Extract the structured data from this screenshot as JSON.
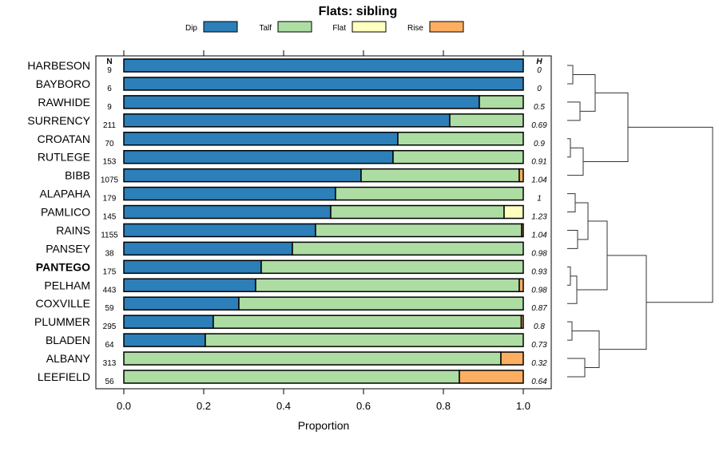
{
  "chart_data": {
    "type": "bar",
    "orientation": "horizontal",
    "stacked": true,
    "title": "Flats: sibling",
    "xlabel": "Proportion",
    "ylabel": "",
    "xlim": [
      0,
      1
    ],
    "x_ticks": [
      "0.0",
      "0.2",
      "0.4",
      "0.6",
      "0.8",
      "1.0"
    ],
    "legend_position": "top",
    "n_header": "N",
    "h_header": "H",
    "highlight": "PANTEGO",
    "categories": [
      "HARBESON",
      "BAYBORO",
      "RAWHIDE",
      "SURRENCY",
      "CROATAN",
      "RUTLEGE",
      "BIBB",
      "ALAPAHA",
      "PAMLICO",
      "RAINS",
      "PANSEY",
      "PANTEGO",
      "PELHAM",
      "COXVILLE",
      "PLUMMER",
      "BLADEN",
      "ALBANY",
      "LEEFIELD"
    ],
    "n": [
      "9",
      "6",
      "9",
      "211",
      "70",
      "153",
      "1075",
      "179",
      "145",
      "1155",
      "38",
      "175",
      "443",
      "59",
      "295",
      "64",
      "313",
      "56"
    ],
    "h": [
      "0",
      "0",
      "0.5",
      "0.69",
      "0.9",
      "0.91",
      "1.04",
      "1",
      "1.23",
      "1.04",
      "0.98",
      "0.93",
      "0.98",
      "0.87",
      "0.8",
      "0.73",
      "0.32",
      "0.64"
    ],
    "series": [
      {
        "name": "Dip",
        "color": "#2c7fb8",
        "values": [
          1,
          1,
          0.89,
          0.816,
          0.686,
          0.674,
          0.594,
          0.53,
          0.518,
          0.48,
          0.422,
          0.344,
          0.33,
          0.288,
          0.224,
          0.204,
          0,
          0
        ]
      },
      {
        "name": "Talf",
        "color": "#addda3",
        "values": [
          0,
          0,
          0.11,
          0.184,
          0.314,
          0.326,
          0.396,
          0.47,
          0.434,
          0.516,
          0.578,
          0.656,
          0.66,
          0.712,
          0.771,
          0.796,
          0.944,
          0.84
        ]
      },
      {
        "name": "Flat",
        "color": "#ffffc0",
        "values": [
          0,
          0,
          0,
          0,
          0,
          0,
          0,
          0,
          0.048,
          0,
          0,
          0,
          0,
          0,
          0,
          0,
          0,
          0
        ]
      },
      {
        "name": "Rise",
        "color": "#fdae61",
        "values": [
          0,
          0,
          0,
          0,
          0,
          0,
          0.01,
          0,
          0,
          0.004,
          0,
          0,
          0.01,
          0,
          0.005,
          0,
          0.056,
          0.16
        ]
      }
    ]
  }
}
